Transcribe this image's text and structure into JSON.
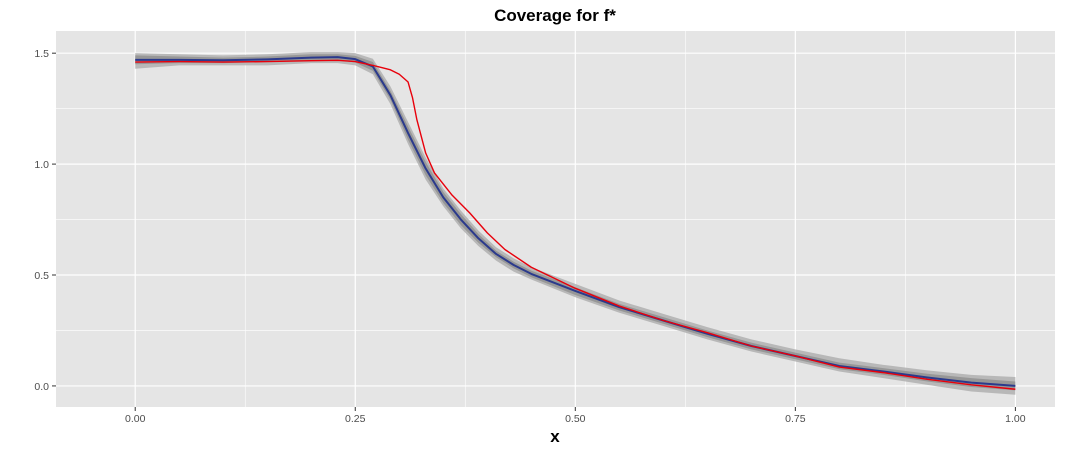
{
  "chart_data": {
    "type": "line",
    "title": "Coverage for f*",
    "xlabel": "x",
    "ylabel": "",
    "xlim": [
      -0.09,
      1.045
    ],
    "ylim": [
      -0.095,
      1.6
    ],
    "xticks": [
      0.0,
      0.25,
      0.5,
      0.75,
      1.0
    ],
    "xtick_labels": [
      "0.00",
      "0.25",
      "0.50",
      "0.75",
      "1.00"
    ],
    "yticks": [
      0.0,
      0.5,
      1.0,
      1.5
    ],
    "ytick_labels": [
      "0.0",
      "0.5",
      "1.0",
      "1.5"
    ],
    "grid": true,
    "legend": "none",
    "colors": {
      "panel": "#e5e5e5",
      "grid": "#ffffff",
      "band_outer": "#b0b0b0",
      "band_inner": "#8c8c8c",
      "estimate": "#2b3a8c",
      "truth": "#e8000b"
    },
    "series": [
      {
        "role": "outer-band",
        "x": [
          0.0,
          0.05,
          0.1,
          0.15,
          0.2,
          0.23,
          0.25,
          0.27,
          0.29,
          0.31,
          0.33,
          0.35,
          0.37,
          0.39,
          0.41,
          0.43,
          0.45,
          0.5,
          0.55,
          0.6,
          0.65,
          0.7,
          0.75,
          0.8,
          0.85,
          0.9,
          0.95,
          1.0
        ],
        "lower": [
          1.43,
          1.445,
          1.445,
          1.445,
          1.455,
          1.455,
          1.445,
          1.405,
          1.27,
          1.09,
          0.93,
          0.81,
          0.71,
          0.63,
          0.565,
          0.515,
          0.48,
          0.4,
          0.33,
          0.27,
          0.21,
          0.155,
          0.11,
          0.065,
          0.035,
          0.005,
          -0.025,
          -0.04
        ],
        "upper": [
          1.5,
          1.495,
          1.49,
          1.495,
          1.505,
          1.505,
          1.5,
          1.475,
          1.35,
          1.19,
          1.03,
          0.89,
          0.79,
          0.7,
          0.625,
          0.575,
          0.535,
          0.46,
          0.385,
          0.325,
          0.265,
          0.21,
          0.165,
          0.125,
          0.095,
          0.07,
          0.05,
          0.04
        ]
      },
      {
        "role": "inner-band",
        "x": [
          0.0,
          0.05,
          0.1,
          0.15,
          0.2,
          0.23,
          0.25,
          0.27,
          0.29,
          0.31,
          0.33,
          0.35,
          0.37,
          0.39,
          0.41,
          0.43,
          0.45,
          0.5,
          0.55,
          0.6,
          0.65,
          0.7,
          0.75,
          0.8,
          0.85,
          0.9,
          0.95,
          1.0
        ],
        "lower": [
          1.45,
          1.455,
          1.455,
          1.46,
          1.465,
          1.468,
          1.458,
          1.42,
          1.29,
          1.11,
          0.95,
          0.825,
          0.725,
          0.645,
          0.58,
          0.53,
          0.49,
          0.41,
          0.34,
          0.28,
          0.22,
          0.165,
          0.12,
          0.075,
          0.05,
          0.02,
          -0.005,
          -0.02
        ],
        "upper": [
          1.49,
          1.485,
          1.48,
          1.485,
          1.495,
          1.495,
          1.488,
          1.46,
          1.33,
          1.17,
          1.01,
          0.875,
          0.775,
          0.685,
          0.61,
          0.56,
          0.52,
          0.445,
          0.37,
          0.31,
          0.25,
          0.195,
          0.15,
          0.105,
          0.08,
          0.055,
          0.035,
          0.02
        ]
      },
      {
        "role": "estimate",
        "x": [
          0.0,
          0.05,
          0.1,
          0.15,
          0.2,
          0.23,
          0.25,
          0.27,
          0.29,
          0.31,
          0.33,
          0.35,
          0.37,
          0.39,
          0.41,
          0.43,
          0.45,
          0.5,
          0.55,
          0.6,
          0.65,
          0.7,
          0.75,
          0.8,
          0.85,
          0.9,
          0.95,
          1.0
        ],
        "y": [
          1.47,
          1.47,
          1.468,
          1.472,
          1.48,
          1.482,
          1.473,
          1.44,
          1.31,
          1.14,
          0.98,
          0.85,
          0.75,
          0.665,
          0.595,
          0.545,
          0.505,
          0.428,
          0.355,
          0.295,
          0.235,
          0.18,
          0.135,
          0.09,
          0.065,
          0.038,
          0.015,
          0.0
        ]
      },
      {
        "role": "truth",
        "x": [
          0.0,
          0.05,
          0.1,
          0.15,
          0.2,
          0.23,
          0.25,
          0.27,
          0.28,
          0.29,
          0.3,
          0.31,
          0.315,
          0.32,
          0.33,
          0.34,
          0.36,
          0.38,
          0.4,
          0.42,
          0.45,
          0.5,
          0.55,
          0.6,
          0.65,
          0.7,
          0.75,
          0.8,
          0.85,
          0.9,
          0.95,
          1.0
        ],
        "y": [
          1.46,
          1.462,
          1.46,
          1.462,
          1.466,
          1.468,
          1.462,
          1.445,
          1.435,
          1.425,
          1.405,
          1.37,
          1.3,
          1.2,
          1.05,
          0.96,
          0.86,
          0.78,
          0.69,
          0.615,
          0.535,
          0.44,
          0.36,
          0.295,
          0.24,
          0.18,
          0.135,
          0.085,
          0.06,
          0.03,
          0.005,
          -0.015
        ]
      }
    ]
  }
}
